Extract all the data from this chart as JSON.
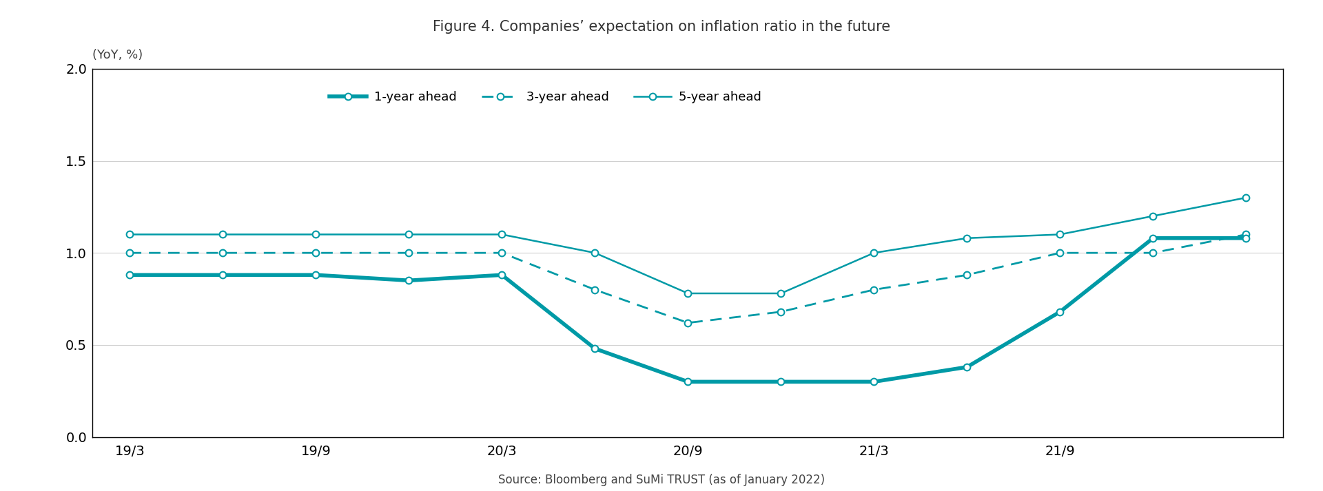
{
  "title": "Figure 4. Companies’ expectation on inflation ratio in the future",
  "ylabel": "(YoY, %)",
  "source": "Source: Bloomberg and SuMi TRUST (as of January 2022)",
  "x_tick_labels": [
    "19/3",
    "19/9",
    "20/3",
    "20/9",
    "21/3",
    "21/9"
  ],
  "x_tick_positions": [
    0,
    2,
    4,
    6,
    8,
    10
  ],
  "x_values": [
    0,
    1,
    2,
    3,
    4,
    5,
    6,
    7,
    8,
    9,
    10,
    11,
    12
  ],
  "one_year": [
    0.88,
    0.88,
    0.88,
    0.85,
    0.88,
    0.48,
    0.3,
    0.3,
    0.3,
    0.38,
    0.68,
    1.08,
    1.08
  ],
  "three_year": [
    1.0,
    1.0,
    1.0,
    1.0,
    1.0,
    0.8,
    0.62,
    0.68,
    0.8,
    0.88,
    1.0,
    1.0,
    1.1
  ],
  "five_year": [
    1.1,
    1.1,
    1.1,
    1.1,
    1.1,
    1.0,
    0.78,
    0.78,
    1.0,
    1.08,
    1.1,
    1.2,
    1.3
  ],
  "color": "#009aa6",
  "ylim": [
    0.0,
    2.0
  ],
  "yticks": [
    0.0,
    0.5,
    1.0,
    1.5,
    2.0
  ],
  "background": "#ffffff",
  "grid_color": "#d0d0d0"
}
